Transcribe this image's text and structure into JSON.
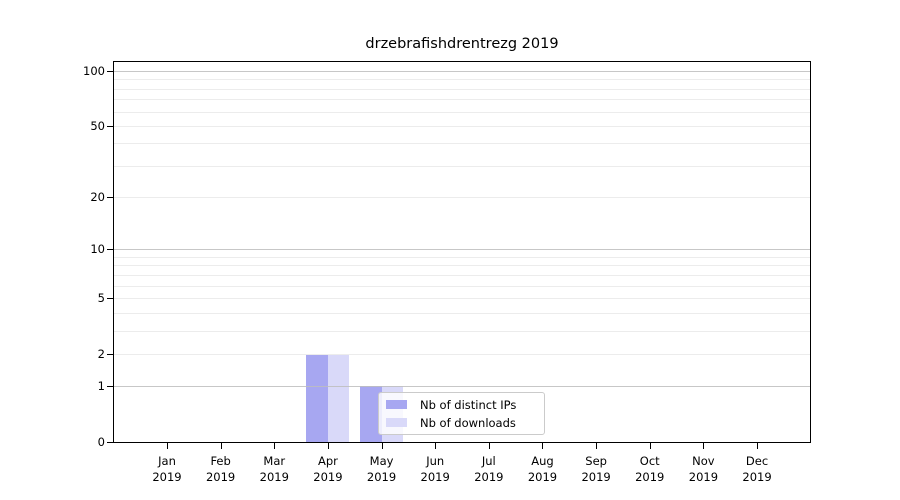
{
  "title": "drzebrafishdrentrezg 2019",
  "chart_data": {
    "type": "bar",
    "title": "drzebrafishdrentrezg 2019",
    "categories": [
      "Jan",
      "Feb",
      "Mar",
      "Apr",
      "May",
      "Jun",
      "Jul",
      "Aug",
      "Sep",
      "Oct",
      "Nov",
      "Dec"
    ],
    "x_year": "2019",
    "series": [
      {
        "name": "Nb of distinct IPs",
        "color": "#a7a7f1",
        "values": [
          0,
          0,
          0,
          2,
          1,
          0,
          0,
          0,
          0,
          0,
          0,
          0
        ]
      },
      {
        "name": "Nb of downloads",
        "color": "#d9d9f9",
        "values": [
          0,
          0,
          0,
          2,
          1,
          0,
          0,
          0,
          0,
          0,
          0,
          0
        ]
      }
    ],
    "y_axis": {
      "scale": "log1p",
      "ticks": [
        0,
        1,
        2,
        5,
        10,
        20,
        50,
        100
      ],
      "max": 112,
      "grid_major": [
        1,
        10,
        100
      ],
      "grid_minor": [
        2,
        3,
        4,
        5,
        6,
        7,
        8,
        9,
        20,
        30,
        40,
        50,
        60,
        70,
        80,
        90
      ]
    },
    "legend": {
      "position": "inside-bottom-center",
      "entries": [
        "Nb of distinct IPs",
        "Nb of downloads"
      ]
    },
    "grid": true
  }
}
